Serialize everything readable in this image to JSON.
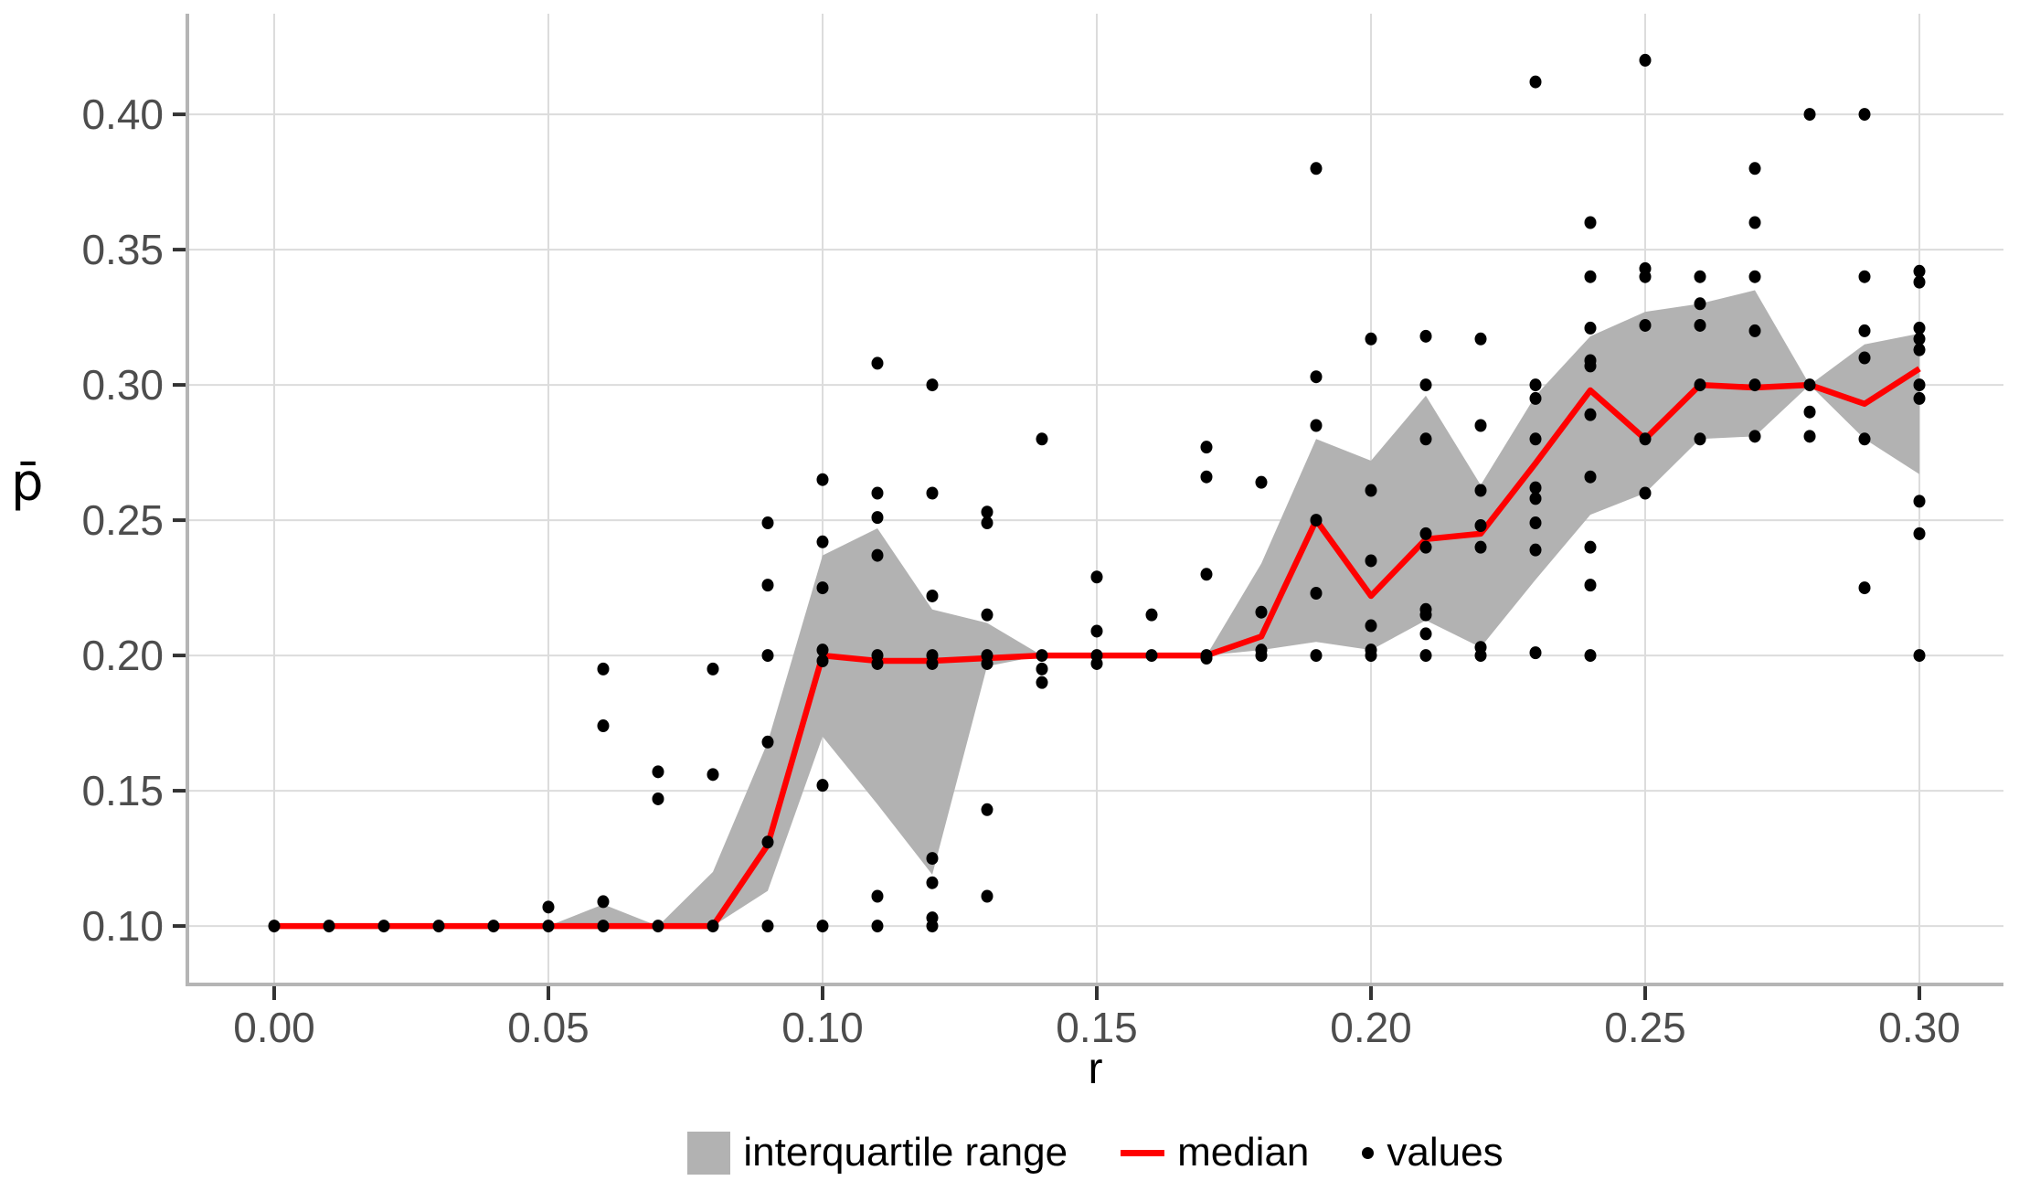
{
  "chart_data": {
    "type": "area",
    "title": "",
    "xlabel": "r",
    "ylabel": "p̄",
    "xlim": [
      -0.01583,
      0.31533
    ],
    "ylim": [
      0.0784,
      0.4372
    ],
    "grid": "major-on",
    "x_ticks": [
      0.0,
      0.05,
      0.1,
      0.15,
      0.2,
      0.25,
      0.3
    ],
    "x_tick_labels": [
      "0.00",
      "0.05",
      "0.10",
      "0.15",
      "0.20",
      "0.25",
      "0.30"
    ],
    "y_ticks": [
      0.1,
      0.15,
      0.2,
      0.25,
      0.3,
      0.35,
      0.4
    ],
    "y_tick_labels": [
      "0.10",
      "0.15",
      "0.20",
      "0.25",
      "0.30",
      "0.35",
      "0.40"
    ],
    "legend_position": "bottom-center",
    "legend": [
      {
        "key": "ribbon",
        "label": "interquartile range"
      },
      {
        "key": "median",
        "label": "median"
      },
      {
        "key": "values",
        "label": "values"
      }
    ],
    "colors": {
      "ribbon": "#b2b2b2",
      "median": "#ff0000",
      "points": "#000000",
      "grid": "#dcdcdc",
      "axis_line": "#b5b5b5",
      "tick_mark": "#333333",
      "tick_label": "#4d4d4d",
      "text": "#000000",
      "background": "#ffffff"
    },
    "r": [
      0.0,
      0.01,
      0.02,
      0.03,
      0.04,
      0.05,
      0.06,
      0.07,
      0.08,
      0.09,
      0.1,
      0.11,
      0.12,
      0.13,
      0.14,
      0.15,
      0.16,
      0.17,
      0.18,
      0.19,
      0.2,
      0.21,
      0.22,
      0.23,
      0.24,
      0.25,
      0.26,
      0.27,
      0.28,
      0.29,
      0.3
    ],
    "series": [
      {
        "name": "median",
        "values": [
          0.1,
          0.1,
          0.1,
          0.1,
          0.1,
          0.1,
          0.1,
          0.1,
          0.1,
          0.13,
          0.2,
          0.198,
          0.198,
          0.199,
          0.2,
          0.2,
          0.2,
          0.2,
          0.207,
          0.25,
          0.222,
          0.243,
          0.245,
          0.271,
          0.298,
          0.28,
          0.3,
          0.299,
          0.3,
          0.293,
          0.306
        ]
      },
      {
        "name": "q1",
        "values": [
          0.1,
          0.1,
          0.1,
          0.1,
          0.1,
          0.1,
          0.1,
          0.1,
          0.1,
          0.113,
          0.17,
          0.145,
          0.119,
          0.196,
          0.2,
          0.2,
          0.2,
          0.2,
          0.202,
          0.205,
          0.202,
          0.213,
          0.203,
          0.228,
          0.252,
          0.26,
          0.28,
          0.281,
          0.3,
          0.28,
          0.267
        ]
      },
      {
        "name": "q3",
        "values": [
          0.1,
          0.1,
          0.1,
          0.1,
          0.1,
          0.1,
          0.108,
          0.1,
          0.12,
          0.168,
          0.237,
          0.247,
          0.217,
          0.212,
          0.2,
          0.2,
          0.2,
          0.2,
          0.234,
          0.28,
          0.272,
          0.296,
          0.263,
          0.296,
          0.318,
          0.327,
          0.33,
          0.335,
          0.3,
          0.315,
          0.319
        ]
      }
    ],
    "points": [
      [
        0.0,
        0.1
      ],
      [
        0.01,
        0.1
      ],
      [
        0.02,
        0.1
      ],
      [
        0.03,
        0.1
      ],
      [
        0.04,
        0.1
      ],
      [
        0.05,
        0.1
      ],
      [
        0.05,
        0.107
      ],
      [
        0.06,
        0.1
      ],
      [
        0.06,
        0.109
      ],
      [
        0.06,
        0.174
      ],
      [
        0.06,
        0.195
      ],
      [
        0.07,
        0.1
      ],
      [
        0.07,
        0.147
      ],
      [
        0.07,
        0.157
      ],
      [
        0.08,
        0.1
      ],
      [
        0.08,
        0.156
      ],
      [
        0.08,
        0.195
      ],
      [
        0.09,
        0.1
      ],
      [
        0.09,
        0.131
      ],
      [
        0.09,
        0.168
      ],
      [
        0.09,
        0.2
      ],
      [
        0.09,
        0.226
      ],
      [
        0.09,
        0.249
      ],
      [
        0.1,
        0.1
      ],
      [
        0.1,
        0.152
      ],
      [
        0.1,
        0.198
      ],
      [
        0.1,
        0.202
      ],
      [
        0.1,
        0.225
      ],
      [
        0.1,
        0.242
      ],
      [
        0.1,
        0.265
      ],
      [
        0.11,
        0.1
      ],
      [
        0.11,
        0.111
      ],
      [
        0.11,
        0.197
      ],
      [
        0.11,
        0.2
      ],
      [
        0.11,
        0.237
      ],
      [
        0.11,
        0.251
      ],
      [
        0.11,
        0.26
      ],
      [
        0.11,
        0.308
      ],
      [
        0.12,
        0.1
      ],
      [
        0.12,
        0.103
      ],
      [
        0.12,
        0.116
      ],
      [
        0.12,
        0.125
      ],
      [
        0.12,
        0.197
      ],
      [
        0.12,
        0.2
      ],
      [
        0.12,
        0.222
      ],
      [
        0.12,
        0.26
      ],
      [
        0.12,
        0.3
      ],
      [
        0.13,
        0.111
      ],
      [
        0.13,
        0.143
      ],
      [
        0.13,
        0.197
      ],
      [
        0.13,
        0.2
      ],
      [
        0.13,
        0.215
      ],
      [
        0.13,
        0.249
      ],
      [
        0.13,
        0.253
      ],
      [
        0.14,
        0.19
      ],
      [
        0.14,
        0.195
      ],
      [
        0.14,
        0.2
      ],
      [
        0.14,
        0.28
      ],
      [
        0.15,
        0.197
      ],
      [
        0.15,
        0.2
      ],
      [
        0.15,
        0.209
      ],
      [
        0.15,
        0.229
      ],
      [
        0.16,
        0.2
      ],
      [
        0.16,
        0.215
      ],
      [
        0.17,
        0.199
      ],
      [
        0.17,
        0.2
      ],
      [
        0.17,
        0.23
      ],
      [
        0.17,
        0.266
      ],
      [
        0.17,
        0.277
      ],
      [
        0.18,
        0.2
      ],
      [
        0.18,
        0.202
      ],
      [
        0.18,
        0.216
      ],
      [
        0.18,
        0.264
      ],
      [
        0.19,
        0.2
      ],
      [
        0.19,
        0.223
      ],
      [
        0.19,
        0.25
      ],
      [
        0.19,
        0.285
      ],
      [
        0.19,
        0.303
      ],
      [
        0.19,
        0.38
      ],
      [
        0.2,
        0.2
      ],
      [
        0.2,
        0.202
      ],
      [
        0.2,
        0.211
      ],
      [
        0.2,
        0.235
      ],
      [
        0.2,
        0.261
      ],
      [
        0.2,
        0.317
      ],
      [
        0.21,
        0.2
      ],
      [
        0.21,
        0.208
      ],
      [
        0.21,
        0.215
      ],
      [
        0.21,
        0.217
      ],
      [
        0.21,
        0.24
      ],
      [
        0.21,
        0.245
      ],
      [
        0.21,
        0.28
      ],
      [
        0.21,
        0.3
      ],
      [
        0.21,
        0.318
      ],
      [
        0.22,
        0.2
      ],
      [
        0.22,
        0.203
      ],
      [
        0.22,
        0.24
      ],
      [
        0.22,
        0.248
      ],
      [
        0.22,
        0.261
      ],
      [
        0.22,
        0.285
      ],
      [
        0.22,
        0.317
      ],
      [
        0.23,
        0.201
      ],
      [
        0.23,
        0.239
      ],
      [
        0.23,
        0.249
      ],
      [
        0.23,
        0.258
      ],
      [
        0.23,
        0.262
      ],
      [
        0.23,
        0.28
      ],
      [
        0.23,
        0.295
      ],
      [
        0.23,
        0.3
      ],
      [
        0.23,
        0.412
      ],
      [
        0.24,
        0.2
      ],
      [
        0.24,
        0.226
      ],
      [
        0.24,
        0.24
      ],
      [
        0.24,
        0.266
      ],
      [
        0.24,
        0.289
      ],
      [
        0.24,
        0.307
      ],
      [
        0.24,
        0.309
      ],
      [
        0.24,
        0.321
      ],
      [
        0.24,
        0.34
      ],
      [
        0.24,
        0.36
      ],
      [
        0.25,
        0.26
      ],
      [
        0.25,
        0.28
      ],
      [
        0.25,
        0.322
      ],
      [
        0.25,
        0.34
      ],
      [
        0.25,
        0.343
      ],
      [
        0.25,
        0.42
      ],
      [
        0.26,
        0.28
      ],
      [
        0.26,
        0.3
      ],
      [
        0.26,
        0.322
      ],
      [
        0.26,
        0.33
      ],
      [
        0.26,
        0.34
      ],
      [
        0.27,
        0.281
      ],
      [
        0.27,
        0.3
      ],
      [
        0.27,
        0.32
      ],
      [
        0.27,
        0.34
      ],
      [
        0.27,
        0.36
      ],
      [
        0.27,
        0.38
      ],
      [
        0.28,
        0.281
      ],
      [
        0.28,
        0.29
      ],
      [
        0.28,
        0.3
      ],
      [
        0.28,
        0.4
      ],
      [
        0.29,
        0.225
      ],
      [
        0.29,
        0.28
      ],
      [
        0.29,
        0.31
      ],
      [
        0.29,
        0.32
      ],
      [
        0.29,
        0.34
      ],
      [
        0.29,
        0.4
      ],
      [
        0.3,
        0.2
      ],
      [
        0.3,
        0.245
      ],
      [
        0.3,
        0.257
      ],
      [
        0.3,
        0.295
      ],
      [
        0.3,
        0.3
      ],
      [
        0.3,
        0.313
      ],
      [
        0.3,
        0.317
      ],
      [
        0.3,
        0.321
      ],
      [
        0.3,
        0.338
      ],
      [
        0.3,
        0.342
      ]
    ]
  }
}
